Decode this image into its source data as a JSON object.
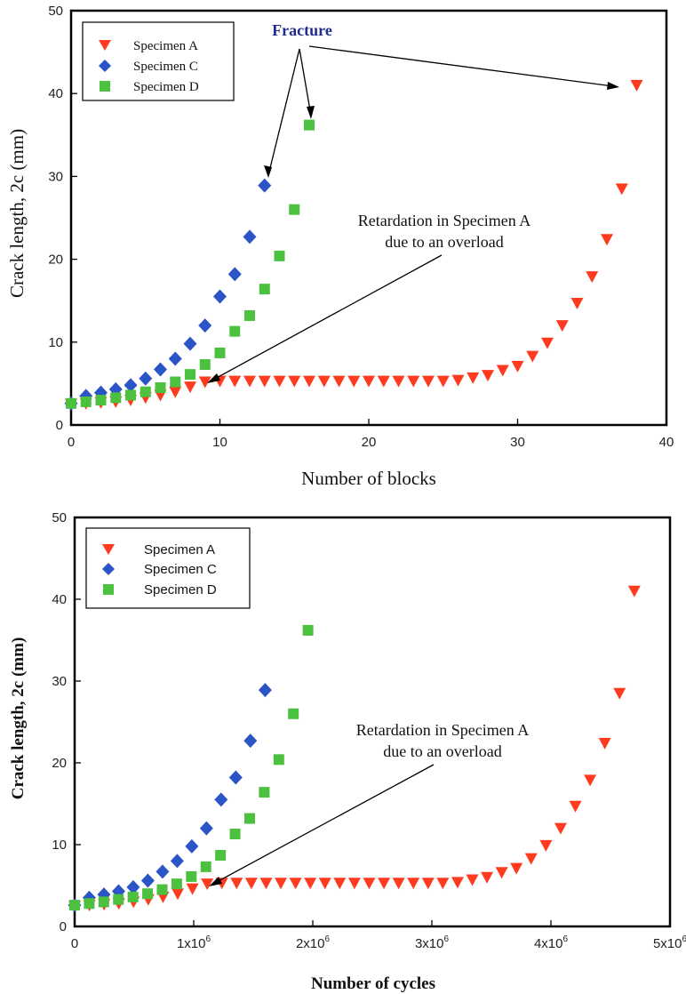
{
  "colors": {
    "specimen_a": "#ff3b1f",
    "specimen_c": "#2b55c6",
    "specimen_d": "#4cc13f",
    "fracture_label": "#1f2c8f"
  },
  "chart_data": [
    {
      "type": "scatter",
      "xlabel": "Number of blocks",
      "ylabel": "Crack length, 2c (mm)",
      "xlim": [
        0,
        40
      ],
      "ylim": [
        0,
        50
      ],
      "x_ticks": [
        "0",
        "10",
        "20",
        "30",
        "40"
      ],
      "y_ticks": [
        "0",
        "10",
        "20",
        "30",
        "40",
        "50"
      ],
      "legend_position": "top-left",
      "grid": false,
      "series": [
        {
          "name": "Specimen A",
          "marker": "triangle-down",
          "points": [
            [
              0,
              2.5
            ],
            [
              1,
              2.6
            ],
            [
              2,
              2.7
            ],
            [
              3,
              2.8
            ],
            [
              4,
              3.0
            ],
            [
              5,
              3.3
            ],
            [
              6,
              3.6
            ],
            [
              7,
              4.0
            ],
            [
              8,
              4.6
            ],
            [
              9,
              5.2
            ],
            [
              10,
              5.3
            ],
            [
              11,
              5.3
            ],
            [
              12,
              5.3
            ],
            [
              13,
              5.3
            ],
            [
              14,
              5.3
            ],
            [
              15,
              5.3
            ],
            [
              16,
              5.3
            ],
            [
              17,
              5.3
            ],
            [
              18,
              5.3
            ],
            [
              19,
              5.3
            ],
            [
              20,
              5.3
            ],
            [
              21,
              5.3
            ],
            [
              22,
              5.3
            ],
            [
              23,
              5.3
            ],
            [
              24,
              5.3
            ],
            [
              25,
              5.3
            ],
            [
              26,
              5.4
            ],
            [
              27,
              5.7
            ],
            [
              28,
              6.0
            ],
            [
              29,
              6.6
            ],
            [
              30,
              7.1
            ],
            [
              31,
              8.3
            ],
            [
              32,
              9.9
            ],
            [
              33,
              12.0
            ],
            [
              34,
              14.7
            ],
            [
              35,
              17.9
            ],
            [
              36,
              22.4
            ],
            [
              37,
              28.5
            ],
            [
              38,
              41.0
            ]
          ]
        },
        {
          "name": "Specimen C",
          "marker": "diamond",
          "points": [
            [
              0,
              2.6
            ],
            [
              1,
              3.5
            ],
            [
              2,
              3.9
            ],
            [
              3,
              4.3
            ],
            [
              4,
              4.8
            ],
            [
              5,
              5.6
            ],
            [
              6,
              6.7
            ],
            [
              7,
              8.0
            ],
            [
              8,
              9.8
            ],
            [
              9,
              12.0
            ],
            [
              10,
              15.5
            ],
            [
              11,
              18.2
            ],
            [
              12,
              22.7
            ],
            [
              13,
              28.9
            ]
          ]
        },
        {
          "name": "Specimen D",
          "marker": "square",
          "points": [
            [
              0,
              2.6
            ],
            [
              1,
              2.8
            ],
            [
              2,
              3.0
            ],
            [
              3,
              3.3
            ],
            [
              4,
              3.6
            ],
            [
              5,
              4.0
            ],
            [
              6,
              4.5
            ],
            [
              7,
              5.2
            ],
            [
              8,
              6.1
            ],
            [
              9,
              7.3
            ],
            [
              10,
              8.7
            ],
            [
              11,
              11.3
            ],
            [
              12,
              13.2
            ],
            [
              13,
              16.4
            ],
            [
              14,
              20.4
            ],
            [
              15,
              26.0
            ],
            [
              16,
              36.2
            ]
          ]
        }
      ],
      "annotations": [
        {
          "text": "Fracture"
        },
        {
          "text_lines": [
            "Retardation in Specimen  A",
            "due to an overload"
          ]
        }
      ]
    },
    {
      "type": "scatter",
      "xlabel": "Number of cycles",
      "ylabel": "Crack length, 2c (mm)",
      "xlim": [
        0,
        5000000
      ],
      "ylim": [
        0,
        50
      ],
      "x_ticks": [
        {
          "mant": "0",
          "exp": ""
        },
        {
          "mant": "1x10",
          "exp": "6"
        },
        {
          "mant": "2x10",
          "exp": "6"
        },
        {
          "mant": "3x10",
          "exp": "6"
        },
        {
          "mant": "4x10",
          "exp": "6"
        },
        {
          "mant": "5x10",
          "exp": "6"
        }
      ],
      "y_ticks": [
        "0",
        "10",
        "20",
        "30",
        "40",
        "50"
      ],
      "legend_position": "top-left",
      "grid": false,
      "series": [
        {
          "name": "Specimen A",
          "marker": "triangle-down",
          "points": [
            [
              0,
              2.5
            ],
            [
              123700,
              2.6
            ],
            [
              247400,
              2.7
            ],
            [
              371100,
              2.8
            ],
            [
              494700,
              3.0
            ],
            [
              618400,
              3.3
            ],
            [
              742100,
              3.6
            ],
            [
              865800,
              4.0
            ],
            [
              989500,
              4.6
            ],
            [
              1113200,
              5.2
            ],
            [
              1236800,
              5.3
            ],
            [
              1360500,
              5.3
            ],
            [
              1484200,
              5.3
            ],
            [
              1607900,
              5.3
            ],
            [
              1731600,
              5.3
            ],
            [
              1855300,
              5.3
            ],
            [
              1978900,
              5.3
            ],
            [
              2102600,
              5.3
            ],
            [
              2226300,
              5.3
            ],
            [
              2350000,
              5.3
            ],
            [
              2473700,
              5.3
            ],
            [
              2597400,
              5.3
            ],
            [
              2721100,
              5.3
            ],
            [
              2844700,
              5.3
            ],
            [
              2968400,
              5.3
            ],
            [
              3092100,
              5.3
            ],
            [
              3215800,
              5.4
            ],
            [
              3339500,
              5.7
            ],
            [
              3463200,
              6.0
            ],
            [
              3586800,
              6.6
            ],
            [
              3710500,
              7.1
            ],
            [
              3834200,
              8.3
            ],
            [
              3957900,
              9.9
            ],
            [
              4081600,
              12.0
            ],
            [
              4205300,
              14.7
            ],
            [
              4328900,
              17.9
            ],
            [
              4452600,
              22.4
            ],
            [
              4576300,
              28.5
            ],
            [
              4700000,
              41.0
            ]
          ]
        },
        {
          "name": "Specimen C",
          "marker": "diamond",
          "points": [
            [
              0,
              2.6
            ],
            [
              123000,
              3.5
            ],
            [
              246000,
              3.9
            ],
            [
              369000,
              4.3
            ],
            [
              492000,
              4.8
            ],
            [
              615000,
              5.6
            ],
            [
              738000,
              6.7
            ],
            [
              861000,
              8.0
            ],
            [
              984000,
              9.8
            ],
            [
              1107000,
              12.0
            ],
            [
              1230000,
              15.5
            ],
            [
              1353000,
              18.2
            ],
            [
              1476000,
              22.7
            ],
            [
              1600000,
              28.9
            ]
          ]
        },
        {
          "name": "Specimen D",
          "marker": "square",
          "points": [
            [
              0,
              2.6
            ],
            [
              122500,
              2.8
            ],
            [
              245000,
              3.0
            ],
            [
              367500,
              3.3
            ],
            [
              490000,
              3.6
            ],
            [
              612500,
              4.0
            ],
            [
              735000,
              4.5
            ],
            [
              857500,
              5.2
            ],
            [
              980000,
              6.1
            ],
            [
              1102500,
              7.3
            ],
            [
              1225000,
              8.7
            ],
            [
              1347500,
              11.3
            ],
            [
              1470000,
              13.2
            ],
            [
              1592500,
              16.4
            ],
            [
              1715000,
              20.4
            ],
            [
              1837500,
              26.0
            ],
            [
              1960000,
              36.2
            ]
          ]
        }
      ],
      "annotations": [
        {
          "text_lines": [
            "Retardation in Specimen  A",
            "due to an overload"
          ]
        }
      ]
    }
  ]
}
